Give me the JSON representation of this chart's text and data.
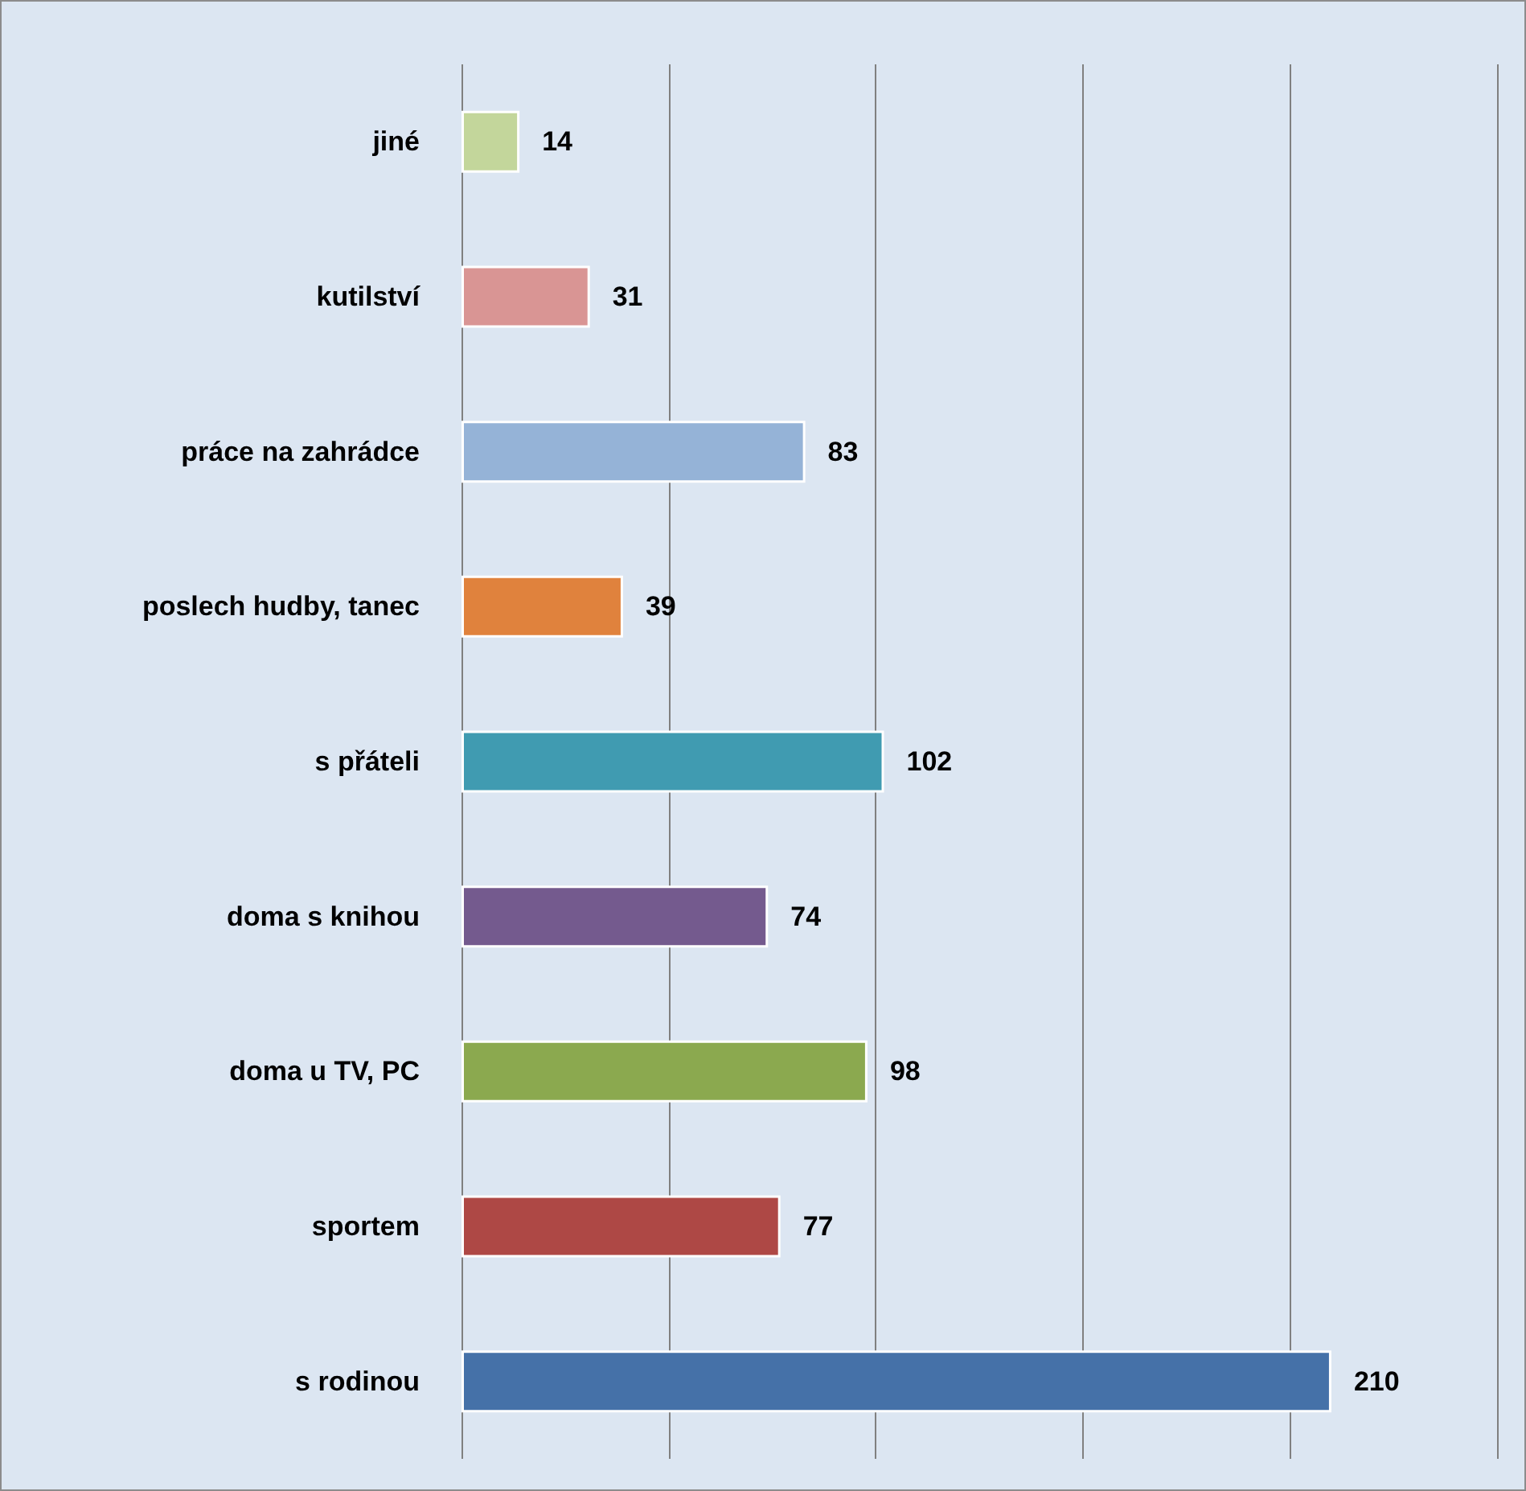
{
  "chart_data": {
    "type": "bar",
    "orientation": "horizontal",
    "categories": [
      "jiné",
      "kutilství",
      "práce na zahrádce",
      "poslech hudby, tanec",
      "s přáteli",
      "doma s knihou",
      "doma u TV, PC",
      "sportem",
      "s rodinou"
    ],
    "values": [
      14,
      31,
      83,
      39,
      102,
      74,
      98,
      77,
      210
    ],
    "colors": [
      "#c3d69b",
      "#d99594",
      "#95b3d7",
      "#e0823d",
      "#409bb1",
      "#745a8e",
      "#8ba94f",
      "#ae4845",
      "#4571a8"
    ],
    "xlim": [
      0,
      250
    ],
    "xticks": [
      {
        "value": 0,
        "label": null
      },
      {
        "value": 50,
        "label": null
      },
      {
        "value": 100,
        "label": null
      },
      {
        "value": 150,
        "label": null
      },
      {
        "value": 200,
        "label": null
      },
      {
        "value": 250,
        "label": null
      }
    ],
    "tick_labels": "y",
    "grid": "x",
    "data_labels": true
  }
}
